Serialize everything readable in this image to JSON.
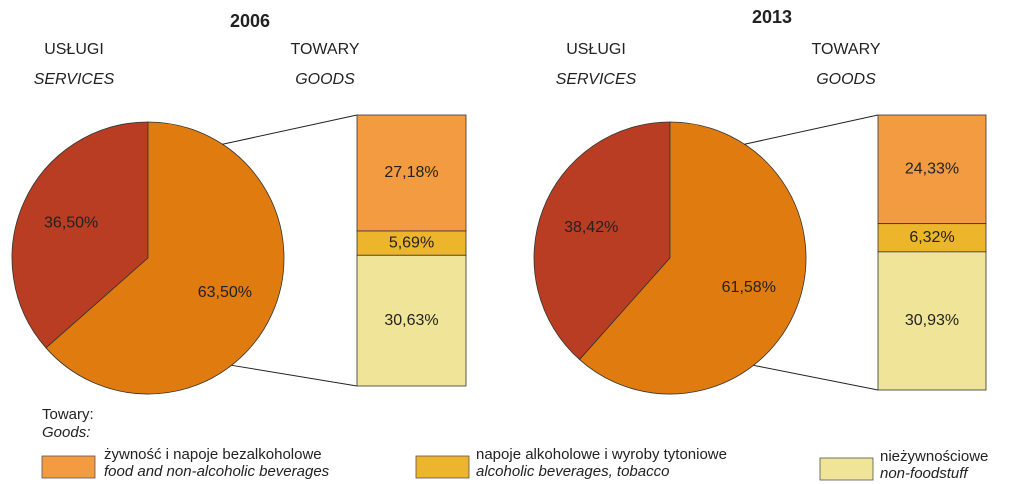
{
  "chart_data": [
    {
      "type": "pie",
      "title": "2006",
      "labels": [
        "USŁUGI",
        "TOWARY"
      ],
      "labels_en": [
        "SERVICES",
        "GOODS"
      ],
      "values": [
        36.5,
        63.5
      ],
      "value_labels": [
        "36,50%",
        "63,50%"
      ],
      "colors": [
        "#b83d22",
        "#e07b10"
      ],
      "breakdown": {
        "values": [
          27.18,
          5.69,
          30.63
        ],
        "value_labels": [
          "27,18%",
          "5,69%",
          "30,63%"
        ],
        "colors": [
          "#f29b40",
          "#ecb52c",
          "#f0e498"
        ]
      }
    },
    {
      "type": "pie",
      "title": "2013",
      "labels": [
        "USŁUGI",
        "TOWARY"
      ],
      "labels_en": [
        "SERVICES",
        "GOODS"
      ],
      "values": [
        38.42,
        61.58
      ],
      "value_labels": [
        "38,42%",
        "61,58%"
      ],
      "colors": [
        "#b83d22",
        "#e07b10"
      ],
      "breakdown": {
        "values": [
          24.33,
          6.32,
          30.93
        ],
        "value_labels": [
          "24,33%",
          "6,32%",
          "30,93%"
        ],
        "colors": [
          "#f29b40",
          "#ecb52c",
          "#f0e498"
        ]
      }
    }
  ],
  "legend": {
    "title": "Towary:",
    "title_en": "Goods:",
    "items": [
      {
        "name": "żywność i napoje bezalkoholowe",
        "name_en": "food and non-alcoholic beverages"
      },
      {
        "name": "napoje alkoholowe i wyroby tytoniowe",
        "name_en": "alcoholic beverages, tobacco"
      },
      {
        "name": "nieżywnościowe",
        "name_en": "non-foodstuff"
      }
    ]
  }
}
